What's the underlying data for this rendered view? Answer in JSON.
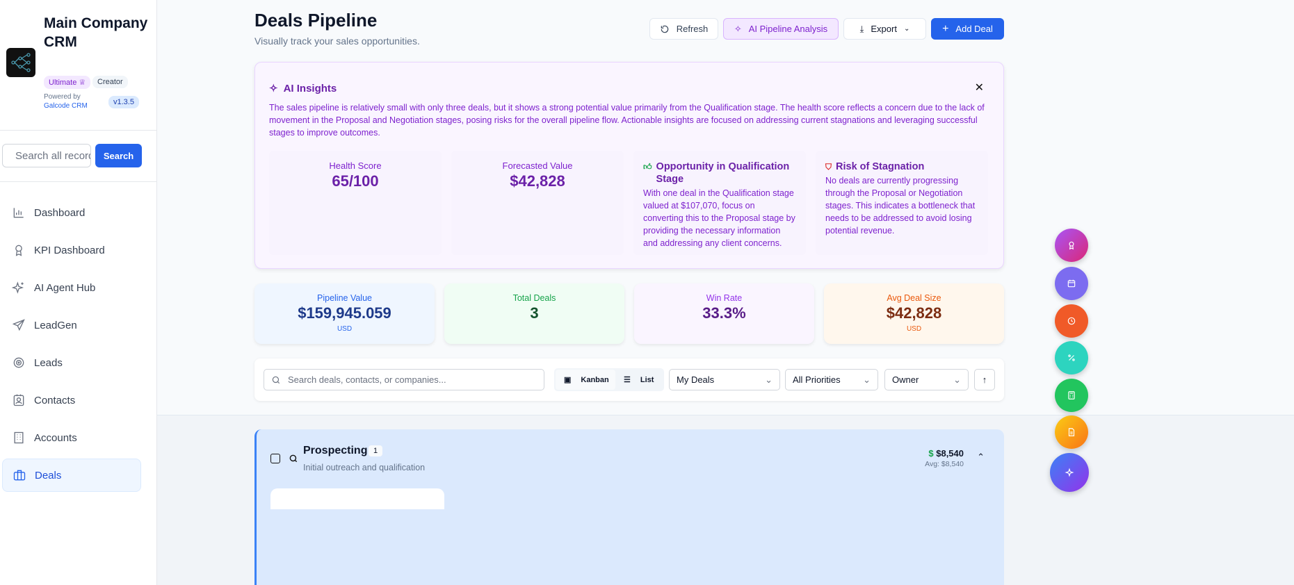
{
  "sidebar": {
    "brand": "Main Company CRM",
    "plan_badge": "Ultimate",
    "role_badge": "Creator",
    "powered_by": "Powered by",
    "powered_link": "Galcode CRM",
    "version": "v1.3.5",
    "search_placeholder": "Search all records",
    "search_button": "Search",
    "items": [
      {
        "label": "Dashboard",
        "icon": "bar-chart-icon"
      },
      {
        "label": "KPI Dashboard",
        "icon": "award-icon"
      },
      {
        "label": "AI Agent Hub",
        "icon": "sparkles-icon"
      },
      {
        "label": "LeadGen",
        "icon": "send-icon"
      },
      {
        "label": "Leads",
        "icon": "target-icon"
      },
      {
        "label": "Contacts",
        "icon": "contact-icon"
      },
      {
        "label": "Accounts",
        "icon": "building-icon"
      },
      {
        "label": "Deals",
        "icon": "briefcase-icon",
        "active": true
      }
    ]
  },
  "header": {
    "title": "Deals Pipeline",
    "subtitle": "Visually track your sales opportunities.",
    "refresh": "Refresh",
    "ai_analysis": "AI Pipeline Analysis",
    "export": "Export",
    "add_deal": "Add Deal"
  },
  "ai_insights": {
    "title": "AI Insights",
    "summary": "The sales pipeline is relatively small with only three deals, but it shows a strong potential value primarily from the Qualification stage. The health score reflects a concern due to the lack of movement in the Proposal and Negotiation stages, posing risks for the overall pipeline flow. Actionable insights are focused on addressing current stagnations and leveraging successful stages to improve outcomes.",
    "health_label": "Health Score",
    "health_value": "65/100",
    "forecast_label": "Forecasted Value",
    "forecast_value": "$42,828",
    "opportunity_title": "Opportunity in Qualification Stage",
    "opportunity_text": "With one deal in the Qualification stage valued at $107,070, focus on converting this to the Proposal stage by providing the necessary information and addressing any client concerns.",
    "risk_title": "Risk of Stagnation",
    "risk_text": "No deals are currently progressing through the Proposal or Negotiation stages. This indicates a bottleneck that needs to be addressed to avoid losing potential revenue."
  },
  "stats": [
    {
      "label": "Pipeline Value",
      "value": "$159,945.059",
      "unit": "USD"
    },
    {
      "label": "Total Deals",
      "value": "3"
    },
    {
      "label": "Win Rate",
      "value": "33.3%"
    },
    {
      "label": "Avg Deal Size",
      "value": "$42,828",
      "unit": "USD"
    }
  ],
  "filters": {
    "search_placeholder": "Search deals, contacts, or companies...",
    "kanban": "Kanban",
    "list": "List",
    "view_mode": "Kanban",
    "deals_filter": "My Deals",
    "priority_filter": "All Priorities",
    "owner_filter": "Owner"
  },
  "stage": {
    "name": "Prospecting",
    "count": "1",
    "description": "Initial outreach and qualification",
    "total": "$8,540",
    "avg": "Avg: $8,540"
  },
  "colors": {
    "primary": "#2563eb",
    "ai_purple": "#7e22ce",
    "stage_blue": "#3b82f6"
  }
}
